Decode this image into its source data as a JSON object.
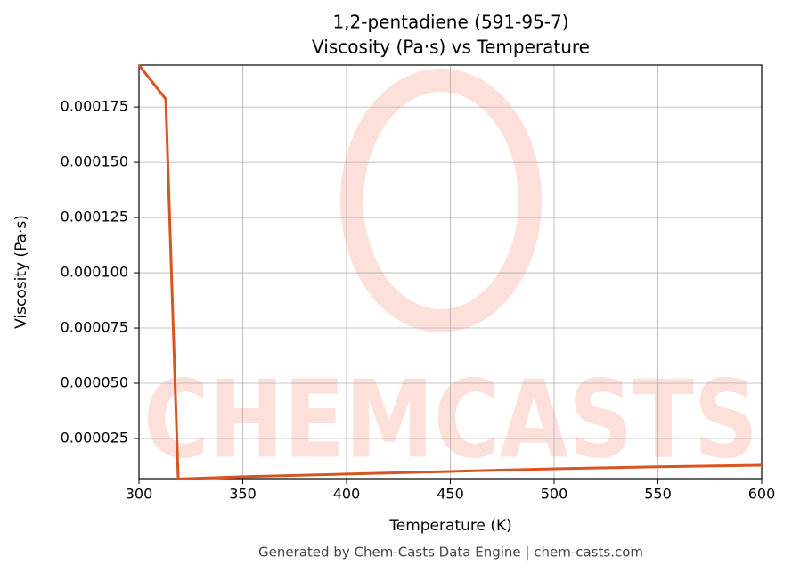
{
  "chart_data": {
    "type": "line",
    "title": "1,2-pentadiene (591-95-7)",
    "subtitle": "Viscosity (Pa·s) vs Temperature",
    "x_label": "Temperature (K)",
    "y_label": "Viscosity (Pa·s)",
    "footer": "Generated by Chem-Casts Data Engine | chem-casts.com",
    "watermark": "CHEMCASTS",
    "x": [
      300,
      312.9,
      318.9,
      350,
      400,
      450,
      500,
      550,
      600
    ],
    "series": [
      {
        "name": "Viscosity",
        "color": "#d95423",
        "values": [
          0.000194,
          0.0001786,
          6.7e-06,
          7.7e-06,
          8.9e-06,
          1.01e-05,
          1.13e-05,
          1.22e-05,
          1.29e-05
        ]
      }
    ],
    "xlim": [
      300,
      600
    ],
    "ylim": [
      6.85e-06,
      0.000194
    ],
    "xticks": [
      300,
      350,
      400,
      450,
      500,
      550,
      600
    ],
    "yticks": [
      2.5e-05,
      {
        "value": 5e-05,
        "label": "0.000050"
      },
      7.5e-05,
      {
        "value": 0.0001,
        "label": "0.000100"
      },
      0.000125,
      {
        "value": 0.00015,
        "label": "0.000150"
      },
      0.000175
    ],
    "grid": true
  }
}
